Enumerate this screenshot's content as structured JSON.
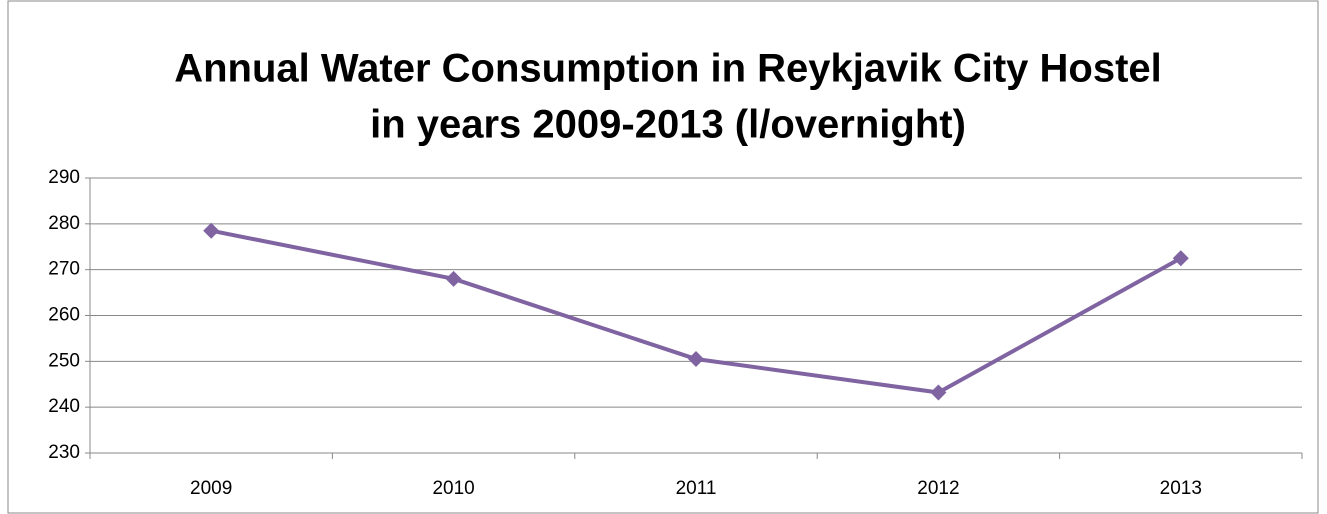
{
  "chart_data": {
    "type": "line",
    "title": [
      "Annual Water Consumption in Reykjavik City Hostel",
      "in years 2009-2013 (l/overnight)"
    ],
    "categories": [
      "2009",
      "2010",
      "2011",
      "2012",
      "2013"
    ],
    "series": [
      {
        "name": "l/overnight",
        "color": "#8064a2",
        "values": [
          278.5,
          268,
          250.5,
          243.2,
          272.5
        ]
      }
    ],
    "ylim": [
      230,
      290
    ],
    "yticks": [
      230,
      240,
      250,
      260,
      270,
      280,
      290
    ],
    "grid": true
  }
}
